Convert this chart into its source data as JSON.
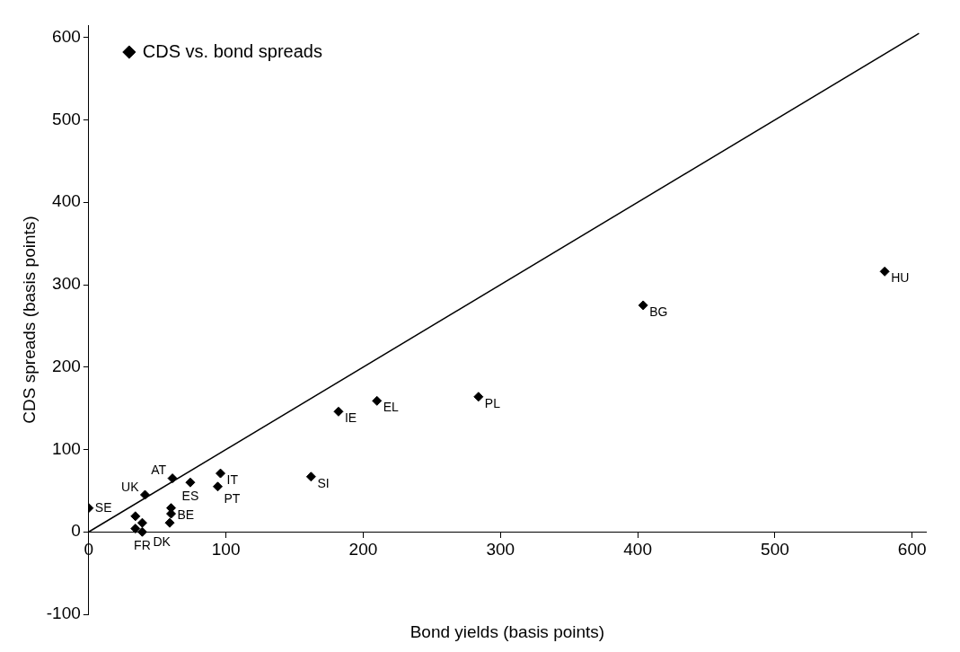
{
  "chart_data": {
    "type": "scatter",
    "xlabel": "Bond yields (basis points)",
    "ylabel": "CDS spreads (basis points)",
    "xlim": [
      0,
      610
    ],
    "ylim": [
      -100,
      615
    ],
    "xticks": [
      0,
      100,
      200,
      300,
      400,
      500,
      600
    ],
    "yticks": [
      -100,
      0,
      100,
      200,
      300,
      400,
      500,
      600
    ],
    "grid": false,
    "legend": "top left",
    "marker": "diamond",
    "series": [
      {
        "name": "CDS vs. bond spreads",
        "color": "#000000",
        "x": [
          0,
          41,
          61,
          74,
          96,
          94,
          34,
          39,
          34,
          39,
          60,
          60,
          59,
          182,
          210,
          284,
          162,
          404,
          580
        ],
        "values": [
          29,
          45,
          65,
          60,
          71,
          55,
          19,
          11,
          4,
          0,
          29,
          22,
          11,
          146,
          159,
          164,
          67,
          275,
          316
        ]
      },
      {
        "type": "line",
        "color": "#000000",
        "x": [
          0,
          605
        ],
        "values": [
          0,
          605
        ],
        "marker": "none",
        "line_style": "solid"
      }
    ],
    "annotations": [
      {
        "text": "SE",
        "x": 0,
        "y": 29
      },
      {
        "text": "UK",
        "x": 41,
        "y": 45
      },
      {
        "text": "AT",
        "x": 61,
        "y": 65
      },
      {
        "text": "ES",
        "x": 74,
        "y": 60
      },
      {
        "text": "IT",
        "x": 96,
        "y": 71
      },
      {
        "text": "PT",
        "x": 94,
        "y": 55
      },
      {
        "text": "BE",
        "x": 60,
        "y": 29
      },
      {
        "text": "DK",
        "x": 39,
        "y": 11
      },
      {
        "text": "FR",
        "x": 39,
        "y": 0
      },
      {
        "text": "IE",
        "x": 182,
        "y": 146
      },
      {
        "text": "EL",
        "x": 210,
        "y": 159
      },
      {
        "text": "PL",
        "x": 284,
        "y": 164
      },
      {
        "text": "SI",
        "x": 162,
        "y": 67
      },
      {
        "text": "BG",
        "x": 404,
        "y": 275
      },
      {
        "text": "HU",
        "x": 580,
        "y": 316
      }
    ]
  }
}
